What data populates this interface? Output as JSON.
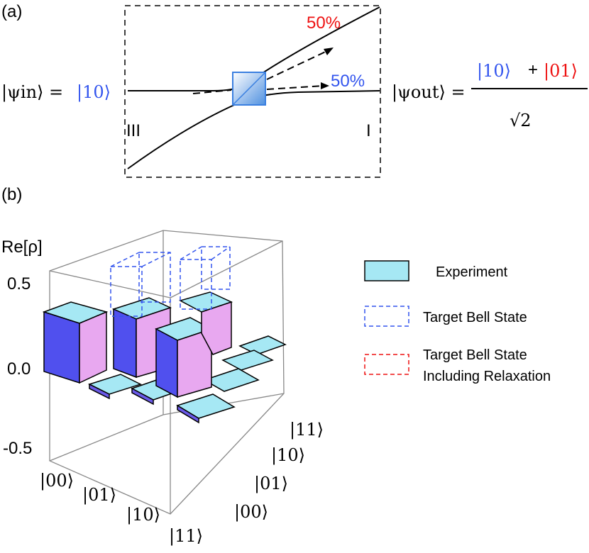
{
  "panel_a": {
    "label": "(a)",
    "psi_in": "|ψin⟩ =",
    "psi_in_sub": "in",
    "psi_in_value": "|10⟩",
    "out_top_percent": "50%",
    "out_bottom_percent": "50%",
    "port_left": "III",
    "port_right": "I",
    "psi_out": "|ψout⟩ =",
    "psi_out_sub": "out",
    "numerator_a": "|10⟩",
    "plus": "+",
    "numerator_b": "|01⟩",
    "denominator": "√2",
    "colors": {
      "blue": "#3355ee",
      "red": "#ee1111"
    }
  },
  "panel_b": {
    "label": "(b)",
    "zlabel": "Re[ρ]",
    "zticks": [
      "0.5",
      "0.0",
      "-0.5"
    ],
    "row_ticks": [
      "|00⟩",
      "|01⟩",
      "|10⟩",
      "|11⟩"
    ],
    "col_ticks": [
      "|11⟩",
      "|10⟩",
      "|01⟩",
      "|00⟩"
    ],
    "legend": {
      "experiment": "Experiment",
      "target": "Target Bell State",
      "relax_line1": "Target Bell State",
      "relax_line2": "Including Relaxation"
    }
  }
}
